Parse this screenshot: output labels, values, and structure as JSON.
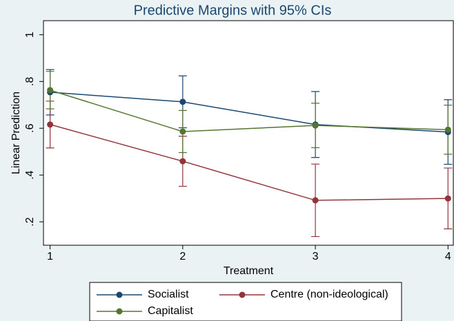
{
  "chart_data": {
    "type": "line",
    "title": "Predictive Margins with 95% CIs",
    "x_label": "Treatment",
    "y_label": "Linear Prediction",
    "x": [
      1,
      2,
      3,
      4
    ],
    "xlim": [
      0.95,
      4.04
    ],
    "xticks": [
      1,
      2,
      3,
      4
    ],
    "ylim": [
      0.1,
      1.06
    ],
    "yticks": [
      {
        "value": 0.2,
        "label": ".2"
      },
      {
        "value": 0.4,
        "label": ".4"
      },
      {
        "value": 0.6,
        "label": ".6"
      },
      {
        "value": 0.8,
        "label": ".8"
      },
      1
    ],
    "series": [
      {
        "name": "Socialist",
        "color": "#1a476f",
        "values": [
          0.754,
          0.713,
          0.616,
          0.584
        ],
        "errors": [
          0.097,
          0.111,
          0.141,
          0.138
        ]
      },
      {
        "name": "Centre (non-ideological)",
        "color": "#90353b",
        "values": [
          0.616,
          0.459,
          0.292,
          0.3
        ],
        "errors": [
          0.1,
          0.107,
          0.155,
          0.13
        ]
      },
      {
        "name": "Capitalist",
        "color": "#55752f",
        "values": [
          0.763,
          0.586,
          0.612,
          0.594
        ],
        "errors": [
          0.08,
          0.09,
          0.095,
          0.105
        ]
      }
    ]
  }
}
